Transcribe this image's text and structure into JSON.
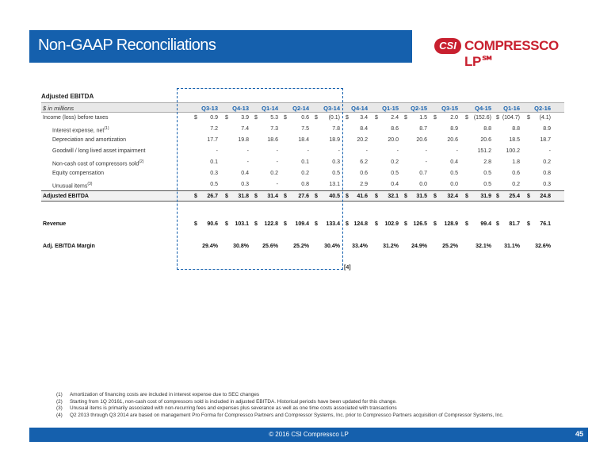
{
  "header": {
    "title": "Non-GAAP Reconciliations",
    "brand_colors": {
      "primary": "#1560ad",
      "accent": "#c8202f"
    }
  },
  "logo": {
    "badge": "CSI",
    "name": "COMPRESSCO LP℠"
  },
  "table": {
    "title": "Adjusted EBITDA",
    "units": "$ in millions",
    "columns": [
      "Q3-13",
      "Q4-13",
      "Q1-14",
      "Q2-14",
      "Q3-14",
      "Q4-14",
      "Q1-15",
      "Q2-15",
      "Q3-15",
      "Q4-15",
      "Q1-16",
      "Q2-16"
    ],
    "rows": [
      {
        "label": "Income (loss) before taxes",
        "sup": "",
        "values": [
          "0.9",
          "3.9",
          "5.3",
          "0.6",
          "(0.1)",
          "3.4",
          "2.4",
          "1.5",
          "2.0",
          "(152.6)",
          "(104.7)",
          "(4.1)"
        ]
      },
      {
        "label": "Interest expense, net",
        "sup": "(1)",
        "values": [
          "7.2",
          "7.4",
          "7.3",
          "7.5",
          "7.8",
          "8.4",
          "8.6",
          "8.7",
          "8.9",
          "8.8",
          "8.8",
          "8.9"
        ]
      },
      {
        "label": "Depreciation and amortization",
        "sup": "",
        "values": [
          "17.7",
          "19.8",
          "18.6",
          "18.4",
          "18.9",
          "20.2",
          "20.0",
          "20.6",
          "20.6",
          "20.6",
          "18.5",
          "18.7"
        ]
      },
      {
        "label": "Goodwill / long lived asset impairment",
        "sup": "",
        "values": [
          "-",
          "-",
          "-",
          "-",
          "-",
          "-",
          "-",
          "-",
          "-",
          "151.2",
          "100.2",
          "-"
        ]
      },
      {
        "label": "Non-cash cost of compressors sold",
        "sup": "(2)",
        "values": [
          "0.1",
          "-",
          "-",
          "0.1",
          "0.3",
          "6.2",
          "0.2",
          "-",
          "0.4",
          "2.8",
          "1.8",
          "0.2"
        ]
      },
      {
        "label": "Equity compensation",
        "sup": "",
        "values": [
          "0.3",
          "0.4",
          "0.2",
          "0.2",
          "0.5",
          "0.6",
          "0.5",
          "0.7",
          "0.5",
          "0.5",
          "0.6",
          "0.8"
        ]
      },
      {
        "label": "Unusual items",
        "sup": "(3)",
        "values": [
          "0.5",
          "0.3",
          "-",
          "0.8",
          "13.1",
          "2.9",
          "0.4",
          "0.0",
          "0.0",
          "0.5",
          "0.2",
          "0.3"
        ]
      }
    ],
    "total": {
      "label": "Adjusted EBITDA",
      "values": [
        "26.7",
        "31.8",
        "31.4",
        "27.6",
        "40.5",
        "41.6",
        "32.1",
        "31.5",
        "32.4",
        "31.9",
        "25.4",
        "24.8"
      ]
    },
    "revenue": {
      "label": "Revenue",
      "values": [
        "90.6",
        "103.1",
        "122.8",
        "109.4",
        "133.4",
        "124.8",
        "102.9",
        "126.5",
        "128.9",
        "99.4",
        "81.7",
        "76.1"
      ]
    },
    "margin": {
      "label": "Adj. EBITDA Margin",
      "values": [
        "29.4%",
        "30.8%",
        "25.6%",
        "25.2%",
        "30.4%",
        "33.4%",
        "31.2%",
        "24.9%",
        "25.2%",
        "32.1%",
        "31.1%",
        "32.6%"
      ]
    },
    "dollar_sign": "$",
    "note_marker": "[4]"
  },
  "footnotes": [
    {
      "num": "(1)",
      "text": "Amortization of financing costs are included in interest expense due to SEC changes"
    },
    {
      "num": "(2)",
      "text": "Starting from 1Q 20161, non-cash cost of compressors sold is included in adjusted EBITDA. Historical periods have been updated for this change."
    },
    {
      "num": "(3)",
      "text": "Unusual items is primarily associated with non-recurring fees and expenses plus severance as well as one time costs associated with transactions"
    },
    {
      "num": "(4)",
      "text": "Q2 2013 through Q3 2014 are based on management Pro Forma for Compressco Partners and Compressor Systems, Inc. prior to Compressco Partners acquisition of Compressor Systems, Inc."
    }
  ],
  "footer": {
    "copyright": "© 2016 CSI Compressco LP",
    "page": "45"
  }
}
